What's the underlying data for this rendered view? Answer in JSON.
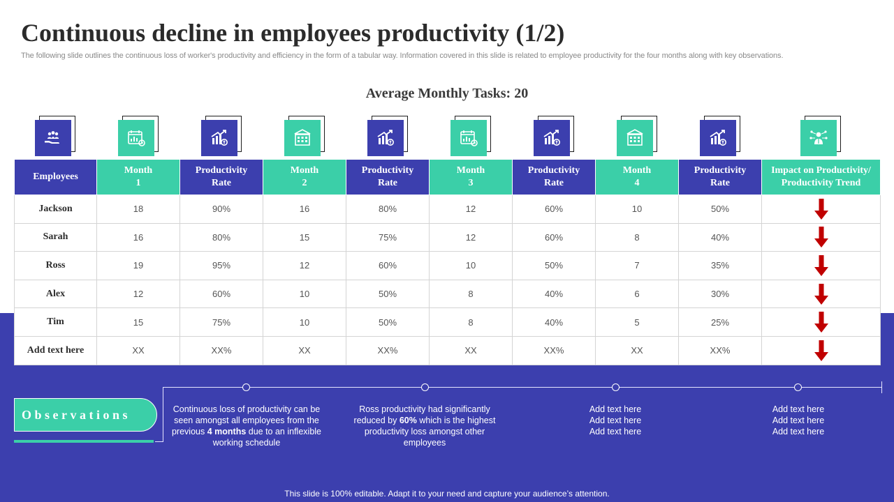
{
  "title": "Continuous decline in employees productivity (1/2)",
  "subtitle": "The following slide outlines the continuous loss of worker's productivity and efficiency in the form of a tabular way. Information covered in this slide is related to employee productivity for the four months along with key observations.",
  "table_caption": "Average Monthly Tasks:  20",
  "colors": {
    "navy": "#3c3fae",
    "teal": "#3bcfa8",
    "arrow_red": "#c00000"
  },
  "header_icons": [
    "hand-people-icon",
    "calendar-chart-icon",
    "bar-growth-icon",
    "building-calendar-icon",
    "bar-growth-icon",
    "calendar-chart-icon",
    "bar-growth-icon",
    "building-calendar-icon",
    "bar-growth-icon",
    "person-network-icon"
  ],
  "table": {
    "headers": [
      {
        "line1": "Employees",
        "line2": ""
      },
      {
        "line1": "Month",
        "line2": "1"
      },
      {
        "line1": "Productivity",
        "line2": "Rate"
      },
      {
        "line1": "Month",
        "line2": "2"
      },
      {
        "line1": "Productivity",
        "line2": "Rate"
      },
      {
        "line1": "Month",
        "line2": "3"
      },
      {
        "line1": "Productivity",
        "line2": "Rate"
      },
      {
        "line1": "Month",
        "line2": "4"
      },
      {
        "line1": "Productivity",
        "line2": "Rate"
      },
      {
        "line1": "Impact on Productivity/",
        "line2": "Productivity Trend"
      }
    ],
    "rows": [
      {
        "name": "Jackson",
        "cells": [
          "18",
          "90%",
          "16",
          "80%",
          "12",
          "60%",
          "10",
          "50%"
        ],
        "trend": "down"
      },
      {
        "name": "Sarah",
        "cells": [
          "16",
          "80%",
          "15",
          "75%",
          "12",
          "60%",
          "8",
          "40%"
        ],
        "trend": "down"
      },
      {
        "name": "Ross",
        "cells": [
          "19",
          "95%",
          "12",
          "60%",
          "10",
          "50%",
          "7",
          "35%"
        ],
        "trend": "down"
      },
      {
        "name": "Alex",
        "cells": [
          "12",
          "60%",
          "10",
          "50%",
          "8",
          "40%",
          "6",
          "30%"
        ],
        "trend": "down"
      },
      {
        "name": "Tim",
        "cells": [
          "15",
          "75%",
          "10",
          "50%",
          "8",
          "40%",
          "5",
          "25%"
        ],
        "trend": "down"
      },
      {
        "name": "Add text here",
        "cells": [
          "XX",
          "XX%",
          "XX",
          "XX%",
          "XX",
          "XX%",
          "XX",
          "XX%"
        ],
        "trend": "down"
      }
    ]
  },
  "observations": {
    "label": "Observations",
    "items": [
      {
        "parts": [
          {
            "text": "Continuous loss of productivity can be seen amongst all employees from the previous ",
            "bold": false
          },
          {
            "text": "4 months",
            "bold": true
          },
          {
            "text": " due to an inflexible working schedule",
            "bold": false
          }
        ]
      },
      {
        "parts": [
          {
            "text": "Ross productivity had significantly reduced by ",
            "bold": false
          },
          {
            "text": "60%",
            "bold": true
          },
          {
            "text": " which is the highest productivity loss amongst other employees",
            "bold": false
          }
        ]
      },
      {
        "lines": [
          "Add text here",
          "Add text here",
          "Add text here"
        ]
      },
      {
        "lines": [
          "Add text here",
          "Add text here",
          "Add text here"
        ]
      }
    ]
  },
  "footer": "This slide is 100% editable. Adapt it to your need and capture your audience’s attention."
}
